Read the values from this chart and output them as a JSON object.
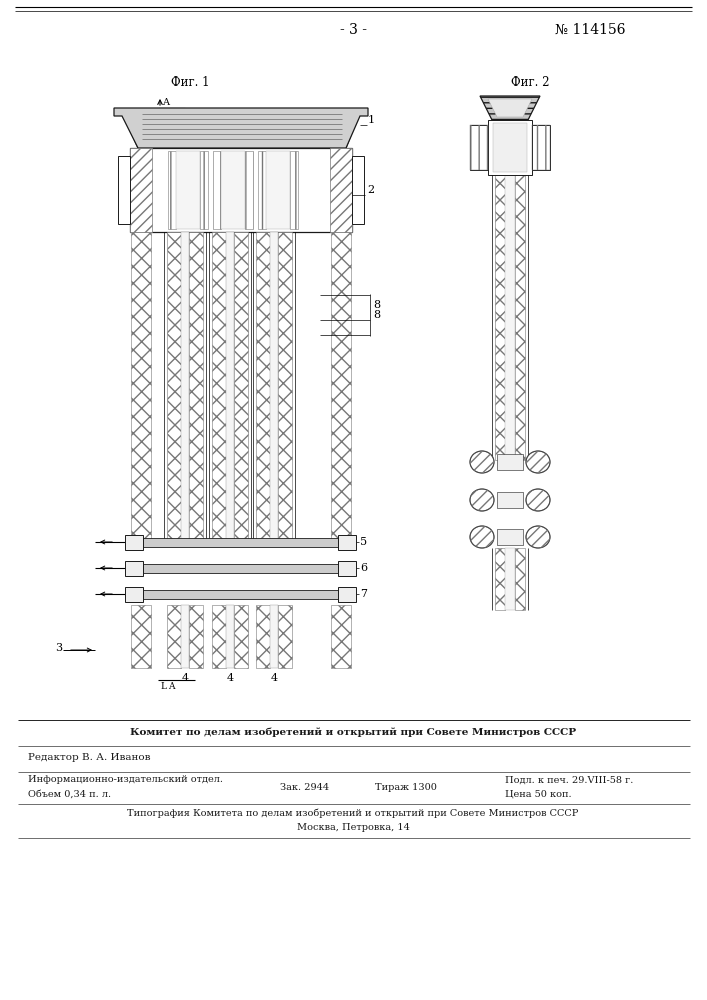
{
  "page_number": "- 3 -",
  "patent_number": "№ 114156",
  "fig1_label": "Фиг. 1",
  "fig2_label": "Фиг. 2",
  "footer_line1": "Комитет по делам изобретений и открытий при Совете Министров СССР",
  "footer_editor": "Редактор В. А. Иванов",
  "footer_info1a": "Информационно-издательский отдел.",
  "footer_info1b": "Объем 0,34 п. л.",
  "footer_info2a": "Зак. 2944",
  "footer_info2b": "Тираж 1300",
  "footer_info3a": "Подл. к печ. 29.VIII-58 г.",
  "footer_info3b": "Цена 50 коп.",
  "footer_typography": "Типография Комитета по делам изобретений и открытий при Совете Министров СССР",
  "footer_address": "Москва, Петровка, 14",
  "bg_color": "#ffffff",
  "line_color": "#1a1a1a",
  "gray1": "#cccccc",
  "gray2": "#888888",
  "gray3": "#dddddd"
}
